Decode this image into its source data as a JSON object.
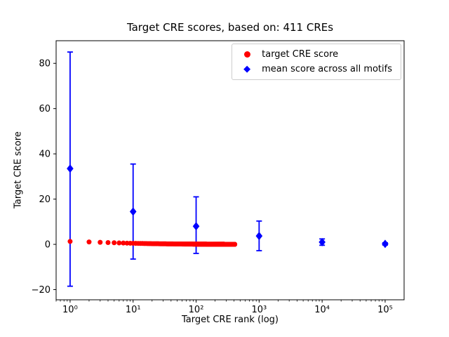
{
  "chart_data": {
    "type": "scatter",
    "title": "Target CRE scores, based on: 411 CREs",
    "xlabel": "Target CRE rank (log)",
    "ylabel": "Target CRE score",
    "x_scale": "log",
    "grid": false,
    "legend_position": "upper right",
    "xlim": [
      0.6,
      200000
    ],
    "ylim": [
      -24.5,
      90
    ],
    "x_ticks": [
      {
        "value": 1,
        "label": "10⁰"
      },
      {
        "value": 10,
        "label": "10¹"
      },
      {
        "value": 100,
        "label": "10²"
      },
      {
        "value": 1000,
        "label": "10³"
      },
      {
        "value": 10000,
        "label": "10⁴"
      },
      {
        "value": 100000,
        "label": "10⁵"
      }
    ],
    "y_ticks": [
      {
        "value": -20,
        "label": "−20"
      },
      {
        "value": 0,
        "label": "0"
      },
      {
        "value": 20,
        "label": "20"
      },
      {
        "value": 40,
        "label": "40"
      },
      {
        "value": 60,
        "label": "60"
      },
      {
        "value": 80,
        "label": "80"
      }
    ],
    "series": [
      {
        "name": "target CRE score",
        "type": "scatter",
        "marker": "circle",
        "color": "#ff0000",
        "n_points": 411,
        "sample_points": [
          [
            1,
            1.3
          ],
          [
            2,
            1.05
          ],
          [
            3,
            0.9
          ],
          [
            4,
            0.8
          ],
          [
            5,
            0.72
          ],
          [
            6,
            0.63
          ],
          [
            8,
            0.53
          ],
          [
            10,
            0.46
          ],
          [
            15,
            0.37
          ],
          [
            20,
            0.3
          ],
          [
            30,
            0.24
          ],
          [
            50,
            0.17
          ],
          [
            70,
            0.13
          ],
          [
            100,
            0.1
          ],
          [
            150,
            0.07
          ],
          [
            200,
            0.05
          ],
          [
            300,
            0.03
          ],
          [
            411,
            0.02
          ]
        ]
      },
      {
        "name": "mean score across all motifs",
        "type": "errorbar",
        "marker": "diamond",
        "color": "#0000ff",
        "points": [
          {
            "x": 1,
            "y": 33.5,
            "ylo": -18.5,
            "yhi": 85.0
          },
          {
            "x": 10,
            "y": 14.5,
            "ylo": -6.5,
            "yhi": 35.5
          },
          {
            "x": 100,
            "y": 8.0,
            "ylo": -4.0,
            "yhi": 21.0
          },
          {
            "x": 1000,
            "y": 3.7,
            "ylo": -2.8,
            "yhi": 10.3
          },
          {
            "x": 10000,
            "y": 1.0,
            "ylo": -0.4,
            "yhi": 2.4
          },
          {
            "x": 100000,
            "y": 0.2,
            "ylo": -0.3,
            "yhi": 0.7
          }
        ]
      }
    ]
  }
}
